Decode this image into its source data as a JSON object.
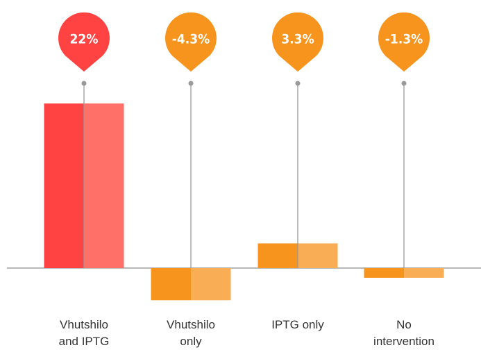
{
  "chart_data": {
    "type": "bar",
    "categories": [
      "Vhutshilo and IPTG",
      "Vhutshilo only",
      "IPTG only",
      "No intervention"
    ],
    "values": [
      22,
      -4.3,
      3.3,
      -1.3
    ],
    "value_labels": [
      "22%",
      "-4.3%",
      "3.3%",
      "-1.3%"
    ],
    "colors": [
      "#ff4343",
      "#f7941d",
      "#f7941d",
      "#f7941d"
    ],
    "light_colors": [
      "#ff7069",
      "#f9ae55",
      "#f9ae55",
      "#f9ae55"
    ]
  }
}
